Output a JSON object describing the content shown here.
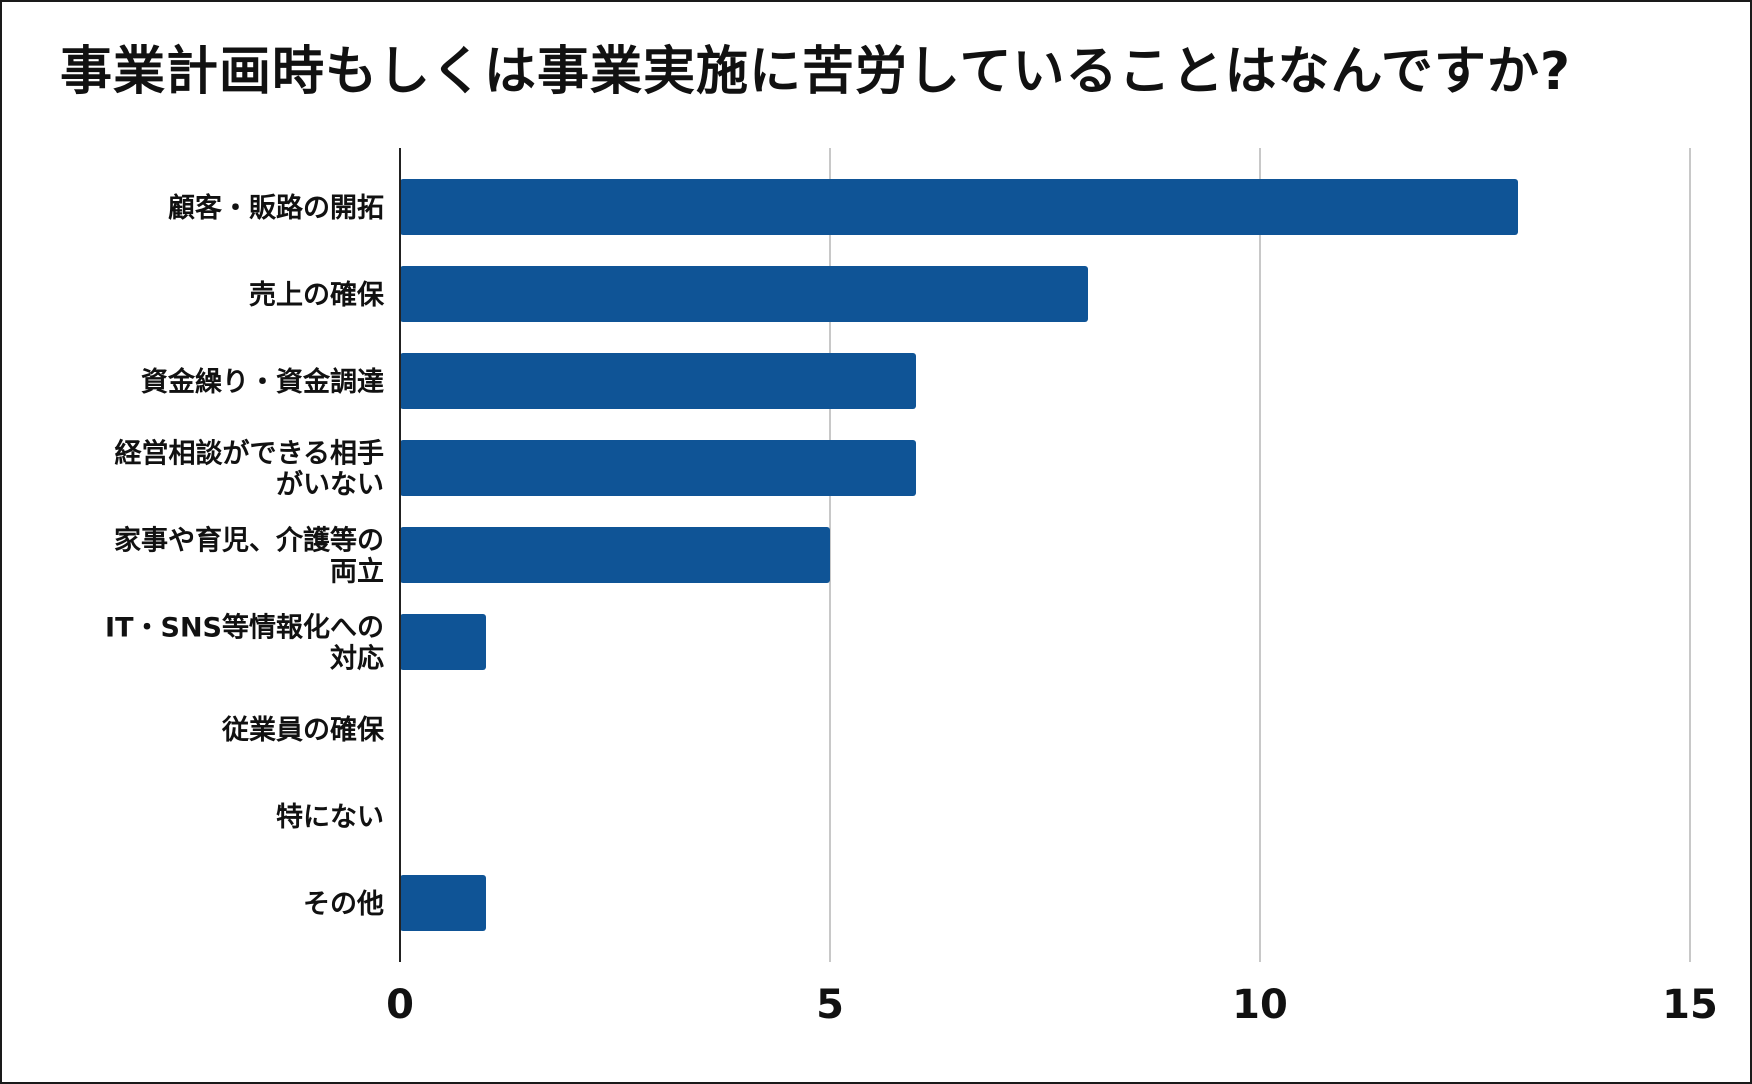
{
  "chart_data": {
    "type": "bar",
    "orientation": "horizontal",
    "title": "事業計画時もしくは事業実施に苦労していることはなんですか?",
    "categories": [
      [
        "顧客・販路の開拓"
      ],
      [
        "売上の確保"
      ],
      [
        "資金繰り・資金調達"
      ],
      [
        "経営相談ができる相手",
        "がいない"
      ],
      [
        "家事や育児、介護等の",
        "両立"
      ],
      [
        "IT・SNS等情報化への",
        "対応"
      ],
      [
        "従業員の確保"
      ],
      [
        "特にない"
      ],
      [
        "その他"
      ]
    ],
    "values": [
      13,
      8,
      6,
      6,
      5,
      1,
      0,
      0,
      1
    ],
    "xlim": [
      0,
      15
    ],
    "xticks": [
      0,
      5,
      10,
      15
    ],
    "xtick_labels": [
      "0",
      "5",
      "10",
      "15"
    ],
    "xlabel": "",
    "ylabel": "",
    "grid": "vertical",
    "bar_color": "#0F5496",
    "grid_color": "#C8C8C8",
    "axis_color": "#222222"
  }
}
